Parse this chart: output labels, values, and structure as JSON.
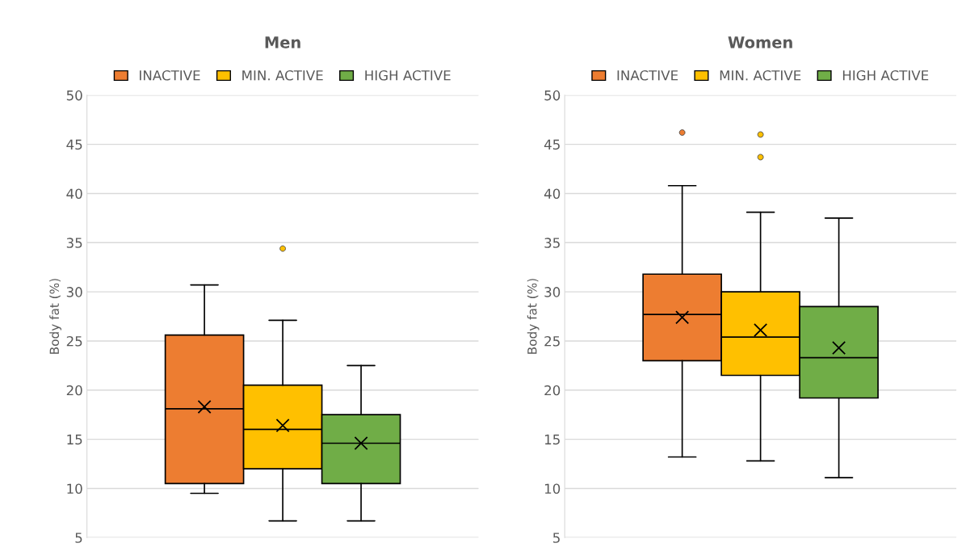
{
  "chart_data": [
    {
      "type": "box",
      "title": "Men",
      "ylabel": "Body fat (%)",
      "categories": [
        null
      ],
      "ylim": [
        5,
        50
      ],
      "yticks": [
        5,
        10,
        15,
        20,
        25,
        30,
        35,
        40,
        45,
        50
      ],
      "grid": "y",
      "legend": "top",
      "tick_labels": "y",
      "series": [
        {
          "name": "INACTIVE",
          "color": "#ed7d31",
          "boxes": [
            {
              "low": 9.5,
              "q1": 10.5,
              "median": 18.1,
              "q3": 25.6,
              "high": 30.7,
              "mean": 18.3
            }
          ]
        },
        {
          "name": "MIN. ACTIVE",
          "color": "#ffc000",
          "boxes": [
            {
              "low": 6.7,
              "q1": 12.0,
              "median": 16.0,
              "q3": 20.5,
              "high": 27.1,
              "mean": 16.4,
              "outliers": [
                34.4
              ]
            }
          ]
        },
        {
          "name": "HIGH ACTIVE",
          "color": "#70ad47",
          "boxes": [
            {
              "low": 6.7,
              "q1": 10.5,
              "median": 14.6,
              "q3": 17.5,
              "high": 22.5,
              "mean": 14.6
            }
          ]
        }
      ]
    },
    {
      "type": "box",
      "title": "Women",
      "ylabel": "Body fat (%)",
      "categories": [
        null
      ],
      "ylim": [
        5,
        50
      ],
      "yticks": [
        5,
        10,
        15,
        20,
        25,
        30,
        35,
        40,
        45,
        50
      ],
      "grid": "y",
      "legend": "top",
      "tick_labels": "y",
      "series": [
        {
          "name": "INACTIVE",
          "color": "#ed7d31",
          "boxes": [
            {
              "low": 13.2,
              "q1": 23.0,
              "median": 27.7,
              "q3": 31.8,
              "high": 40.8,
              "mean": 27.4,
              "outliers": [
                46.2
              ]
            }
          ]
        },
        {
          "name": "MIN. ACTIVE",
          "color": "#ffc000",
          "boxes": [
            {
              "low": 12.8,
              "q1": 21.5,
              "median": 25.4,
              "q3": 30.0,
              "high": 38.1,
              "mean": 26.1,
              "outliers": [
                46.0,
                43.7
              ]
            }
          ]
        },
        {
          "name": "HIGH ACTIVE",
          "color": "#70ad47",
          "boxes": [
            {
              "low": 11.1,
              "q1": 19.2,
              "median": 23.3,
              "q3": 28.5,
              "high": 37.5,
              "mean": 24.3
            }
          ]
        }
      ]
    }
  ]
}
